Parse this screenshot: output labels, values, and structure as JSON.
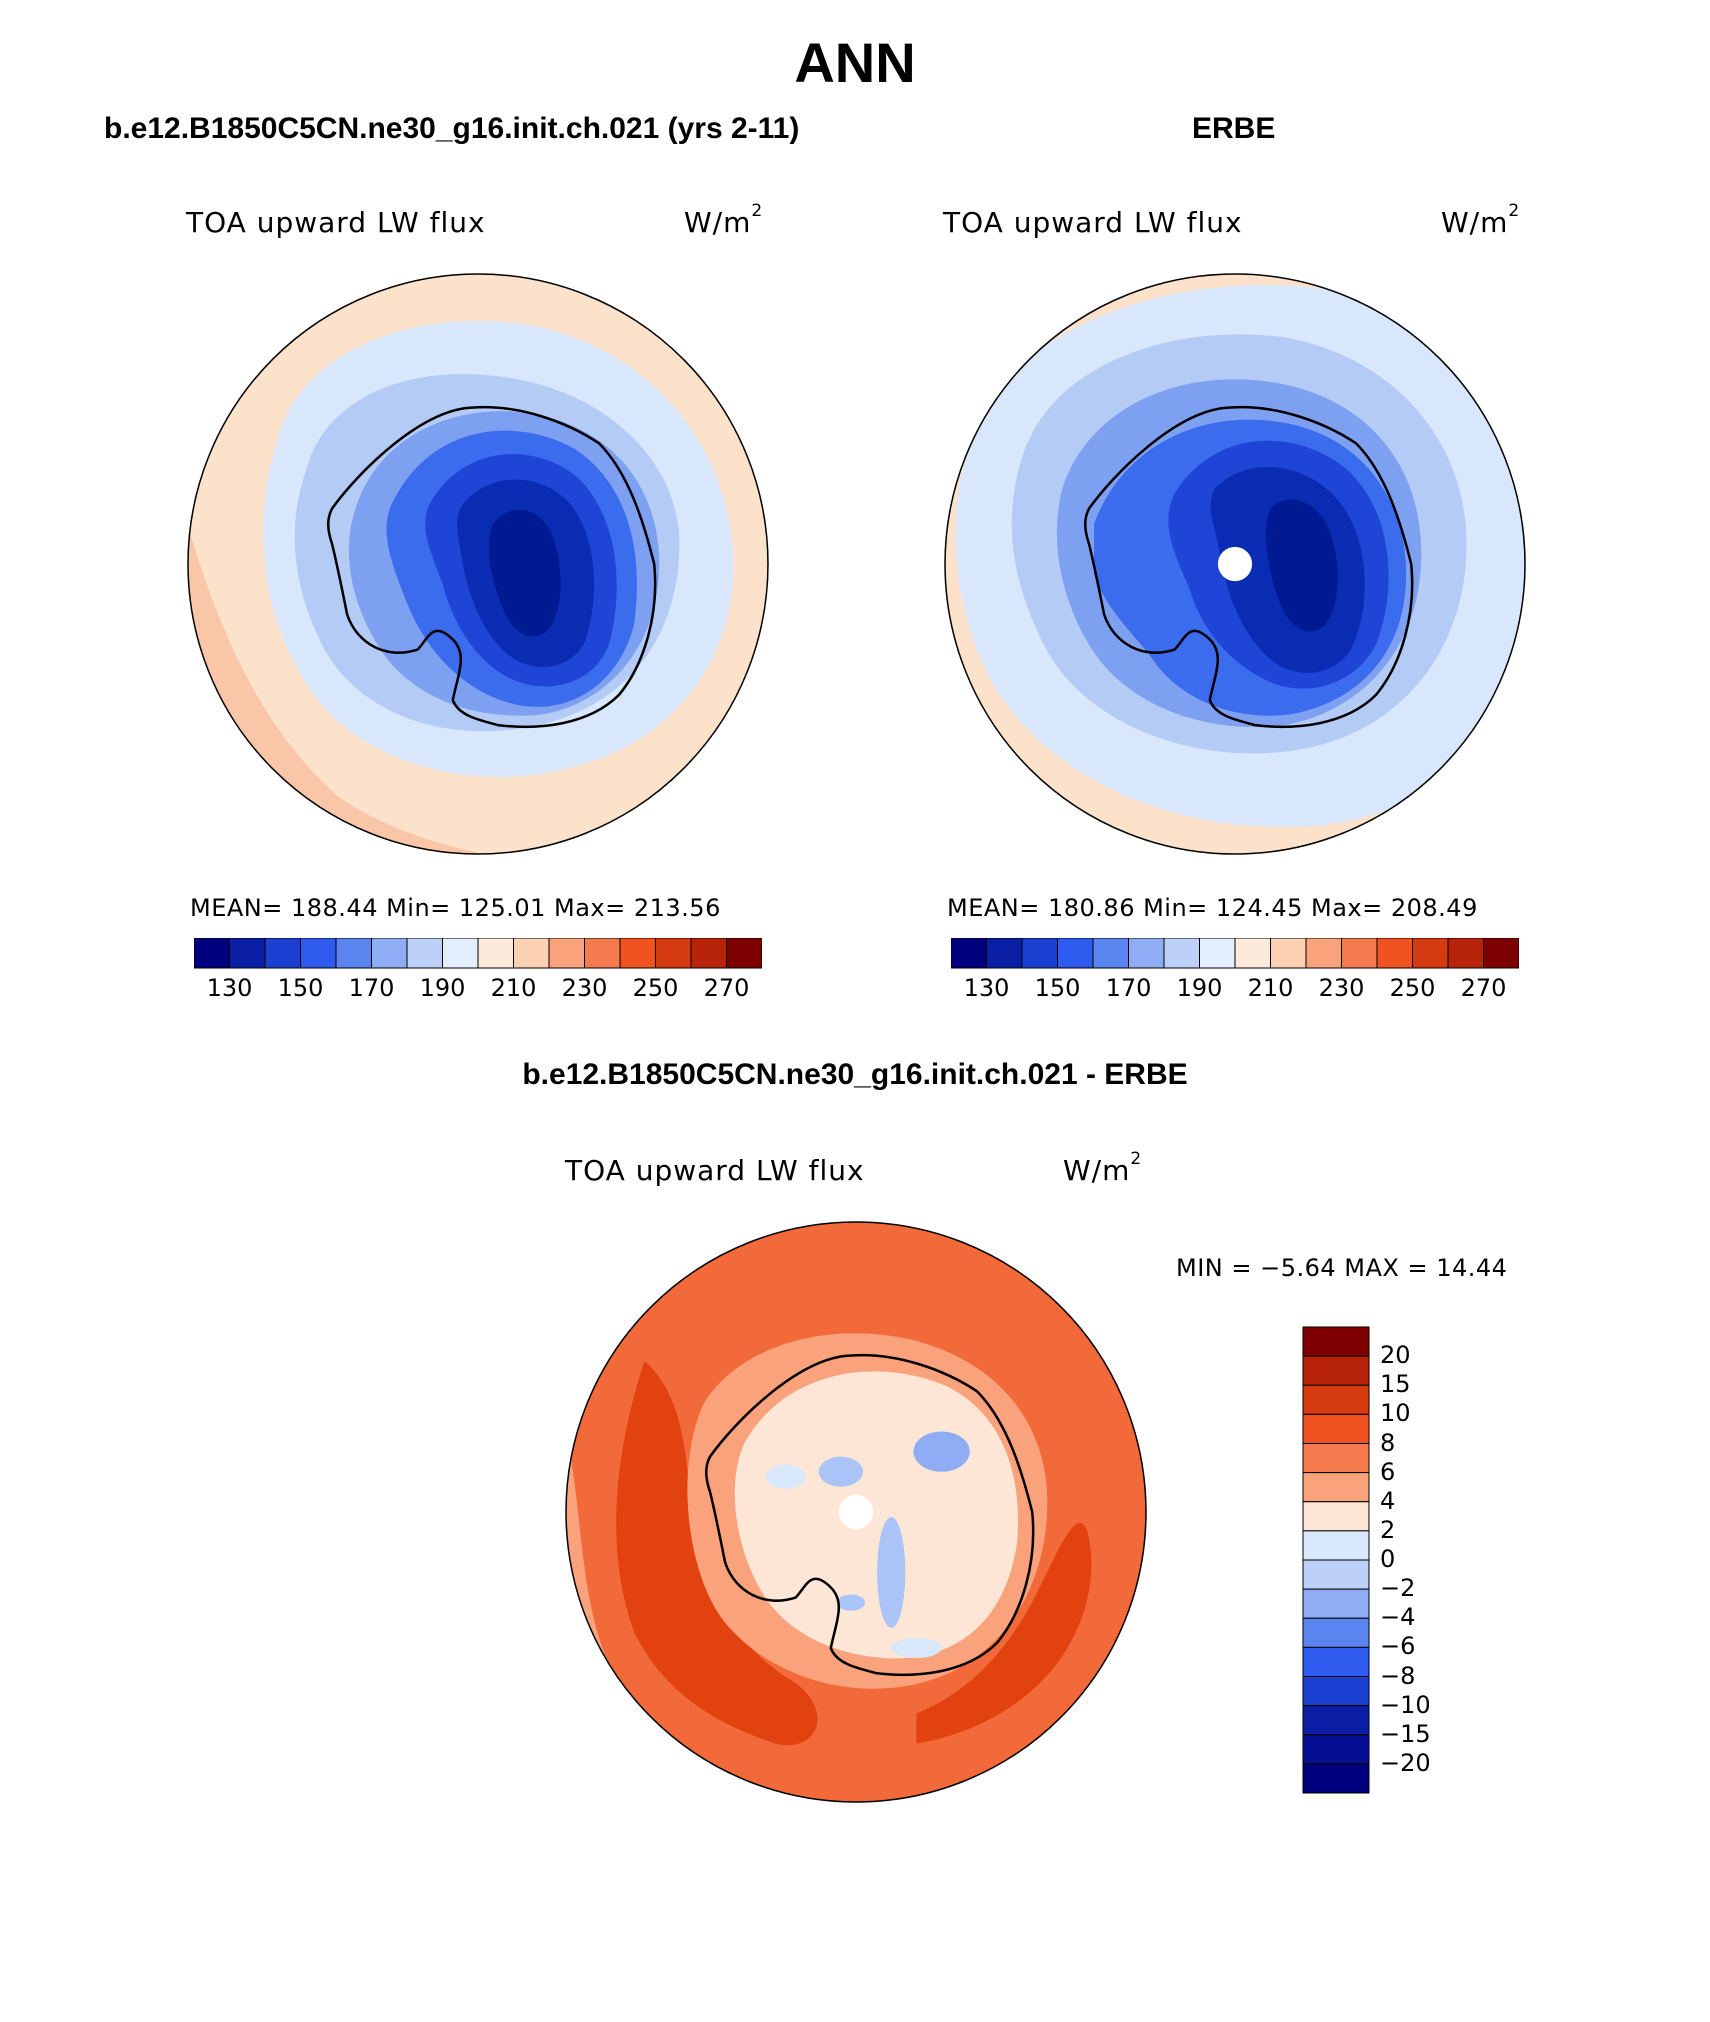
{
  "title": "ANN",
  "panels": [
    {
      "case_name": "b.e12.B1850C5CN.ne30_g16.init.ch.021 (yrs 2-11)",
      "variable": "TOA upward LW flux",
      "units_base": "W/m",
      "units_exp": "2",
      "stats": {
        "mean": "188.44",
        "min": "125.01",
        "max": "213.56"
      },
      "stats_text": "MEAN= 188.44   Min= 125.01   Max= 213.56"
    },
    {
      "case_name": "ERBE",
      "variable": "TOA upward LW flux",
      "units_base": "W/m",
      "units_exp": "2",
      "stats": {
        "mean": "180.86",
        "min": "124.45",
        "max": "208.49"
      },
      "stats_text": "MEAN= 180.86   Min= 124.45   Max= 208.49"
    },
    {
      "case_name": "b.e12.B1850C5CN.ne30_g16.init.ch.021 - ERBE",
      "variable": "TOA upward LW flux",
      "units_base": "W/m",
      "units_exp": "2",
      "stats": {
        "min": "-5.64",
        "max": "14.44"
      },
      "stats_text": "MIN =   −5.64 MAX =   14.44"
    }
  ],
  "colorbar_top": {
    "colors": [
      "#00007f",
      "#0a1fa6",
      "#1a3fd1",
      "#2e5bee",
      "#5a85f0",
      "#8fadf4",
      "#bcd0f8",
      "#e3eefc",
      "#fdeadb",
      "#fcd0b3",
      "#f9a27c",
      "#f57a4e",
      "#f05320",
      "#d63a10",
      "#b8240a",
      "#7f0000"
    ],
    "tick_labels": [
      "130",
      "150",
      "170",
      "190",
      "210",
      "230",
      "250",
      "270"
    ]
  },
  "colorbar_diff": {
    "colors": [
      "#7f0000",
      "#b8240a",
      "#d63a10",
      "#f05320",
      "#f57a4e",
      "#f9a27c",
      "#fde6d6",
      "#d9e7fb",
      "#bcd0f8",
      "#8fadf4",
      "#5a85f0",
      "#2e5bee",
      "#1a3fd1",
      "#0a1fa6",
      "#050f93",
      "#00007f"
    ],
    "tick_labels": [
      "20",
      "15",
      "10",
      "8",
      "6",
      "4",
      "2",
      "0",
      "−2",
      "−4",
      "−6",
      "−8",
      "−10",
      "−15",
      "−20"
    ]
  },
  "map_colors": {
    "outer_warm": "#fce1cb",
    "outer_warm2": "#f9c7a7",
    "ring_pale_blue": "#d8e7fb",
    "ring_blue": "#b4cbf6",
    "ring_mid": "#7ea0f1",
    "ring_deep": "#3c6cee",
    "core1": "#1e45d6",
    "core2": "#0a2cb2",
    "core3": "#001a92",
    "diff_outer": "#f26a3a",
    "diff_dark": "#e1420f",
    "diff_light": "#f9a27c",
    "diff_white": "#fde6d6",
    "diff_blue": "#aac4f7"
  }
}
